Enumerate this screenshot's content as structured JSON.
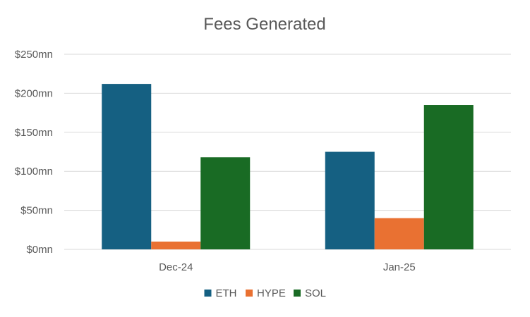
{
  "chart_data": {
    "type": "bar",
    "title": "Fees Generated",
    "categories": [
      "Dec-24",
      "Jan-25"
    ],
    "series": [
      {
        "name": "ETH",
        "values": [
          212,
          125
        ],
        "color": "#156082"
      },
      {
        "name": "HYPE",
        "values": [
          10,
          40
        ],
        "color": "#E97132"
      },
      {
        "name": "SOL",
        "values": [
          118,
          185
        ],
        "color": "#196B24"
      }
    ],
    "y_ticks": [
      0,
      50,
      100,
      150,
      200,
      250
    ],
    "y_tick_labels": [
      "$0mn",
      "$50mn",
      "$100mn",
      "$150mn",
      "$200mn",
      "$250mn"
    ],
    "ylim": [
      0,
      250
    ],
    "grid": true,
    "legend_position": "bottom"
  }
}
